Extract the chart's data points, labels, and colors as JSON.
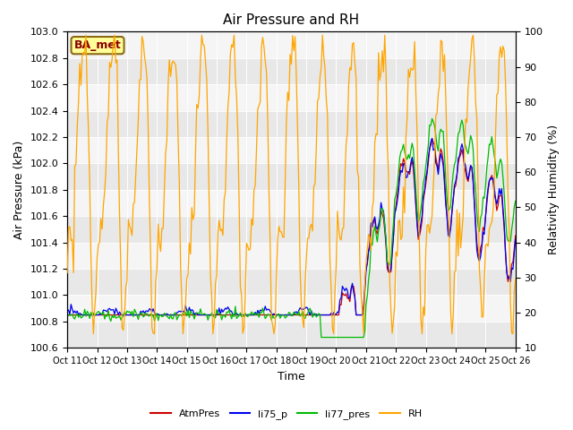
{
  "title": "Air Pressure and RH",
  "xlabel": "Time",
  "ylabel_left": "Air Pressure (kPa)",
  "ylabel_right": "Relativity Humidity (%)",
  "ylim_left": [
    100.6,
    103.0
  ],
  "ylim_right": [
    10,
    100
  ],
  "x_tick_labels": [
    "Oct 11",
    "Oct 12",
    "Oct 13",
    "Oct 14",
    "Oct 15",
    "Oct 16",
    "Oct 17",
    "Oct 18",
    "Oct 19",
    "Oct 20",
    "Oct 21",
    "Oct 22",
    "Oct 23",
    "Oct 24",
    "Oct 25",
    "Oct 26"
  ],
  "label_box_text": "BA_met",
  "label_box_color": "#FFFF99",
  "label_box_edgecolor": "#8B6914",
  "colors": {
    "AtmPres": "#CC0000",
    "li75_p": "#0000EE",
    "li77_pres": "#00BB00",
    "RH": "#FFA500"
  },
  "bg_color_dark": "#E8E8E8",
  "bg_color_light": "#F5F5F5",
  "seed": 17
}
